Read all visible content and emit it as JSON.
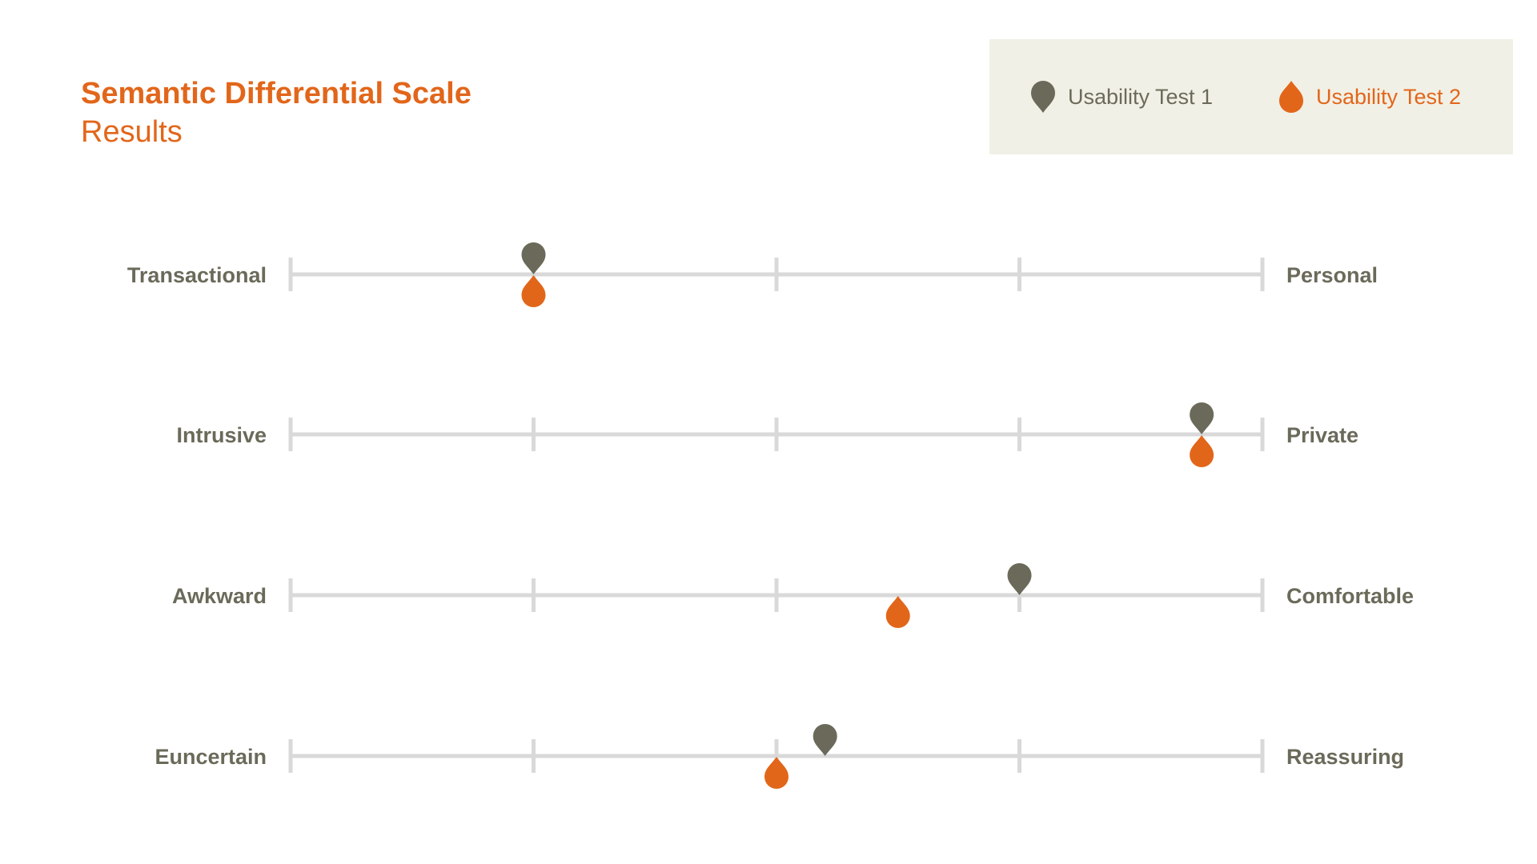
{
  "title": "Semantic Differential Scale",
  "subtitle": "Results",
  "colors": {
    "test1": "#6b6a5a",
    "test2": "#e2661a",
    "track": "#d9d9d9",
    "label": "#6b6a5a",
    "legend_bg": "#f1f0e6"
  },
  "legend": [
    {
      "label": "Usability Test 1",
      "icon": "map-pin-icon",
      "color": "#6b6a5a"
    },
    {
      "label": "Usability Test 2",
      "icon": "drop-icon",
      "color": "#e2661a"
    }
  ],
  "chart_data": {
    "type": "scatter",
    "title": "Semantic Differential Scale",
    "subtitle": "Results",
    "xlim": [
      1,
      5
    ],
    "tick_values": [
      1,
      2,
      3,
      4,
      5
    ],
    "grid": false,
    "legend_position": "top-right",
    "rows": [
      {
        "left": "Transactional",
        "right": "Personal"
      },
      {
        "left": "Intrusive",
        "right": "Private"
      },
      {
        "left": "Awkward",
        "right": "Comfortable"
      },
      {
        "left": "Euncertain",
        "right": "Reassuring"
      }
    ],
    "series": [
      {
        "name": "Usability Test 1",
        "marker": "pin",
        "values": [
          2.0,
          4.75,
          4.0,
          3.2
        ]
      },
      {
        "name": "Usability Test 2",
        "marker": "drop",
        "values": [
          2.0,
          4.75,
          3.5,
          3.0
        ]
      }
    ]
  }
}
